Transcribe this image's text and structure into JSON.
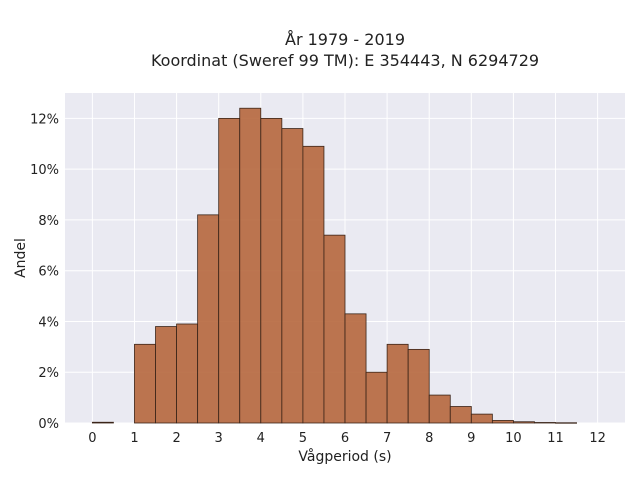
{
  "chart_data": {
    "type": "bar",
    "title_lines": [
      "År 1979 - 2019",
      "Koordinat (Sweref 99 TM): E 354443, N 6294729"
    ],
    "xlabel": "Vågperiod (s)",
    "ylabel": "Andel",
    "xlim": [
      -0.65,
      12.65
    ],
    "ylim": [
      0,
      0.13
    ],
    "x_ticks": [
      0,
      1,
      2,
      3,
      4,
      5,
      6,
      7,
      8,
      9,
      10,
      11,
      12
    ],
    "x_tick_labels": [
      "0",
      "1",
      "2",
      "3",
      "4",
      "5",
      "6",
      "7",
      "8",
      "9",
      "10",
      "11",
      "12"
    ],
    "y_ticks": [
      0,
      0.02,
      0.04,
      0.06,
      0.08,
      0.1,
      0.12
    ],
    "y_tick_labels": [
      "0%",
      "2%",
      "4%",
      "6%",
      "8%",
      "10%",
      "12%"
    ],
    "grid": true,
    "bar_width": 0.5,
    "bars": [
      {
        "x_start": 0.0,
        "value": 0.0003
      },
      {
        "x_start": 1.0,
        "value": 0.031
      },
      {
        "x_start": 1.5,
        "value": 0.038
      },
      {
        "x_start": 2.0,
        "value": 0.039
      },
      {
        "x_start": 2.5,
        "value": 0.082
      },
      {
        "x_start": 3.0,
        "value": 0.12
      },
      {
        "x_start": 3.5,
        "value": 0.124
      },
      {
        "x_start": 4.0,
        "value": 0.12
      },
      {
        "x_start": 4.5,
        "value": 0.116
      },
      {
        "x_start": 5.0,
        "value": 0.109
      },
      {
        "x_start": 5.5,
        "value": 0.074
      },
      {
        "x_start": 6.0,
        "value": 0.043
      },
      {
        "x_start": 6.5,
        "value": 0.02
      },
      {
        "x_start": 7.0,
        "value": 0.031
      },
      {
        "x_start": 7.5,
        "value": 0.029
      },
      {
        "x_start": 8.0,
        "value": 0.011
      },
      {
        "x_start": 8.5,
        "value": 0.0065
      },
      {
        "x_start": 9.0,
        "value": 0.0035
      },
      {
        "x_start": 9.5,
        "value": 0.001
      },
      {
        "x_start": 10.0,
        "value": 0.0005
      },
      {
        "x_start": 10.5,
        "value": 0.0002
      },
      {
        "x_start": 11.0,
        "value": 0.0001
      }
    ],
    "colors": {
      "bar_fill": "#b6673d",
      "bar_edge": "#3a2418",
      "plot_background": "#eaeaf2",
      "grid": "#ffffff"
    }
  }
}
